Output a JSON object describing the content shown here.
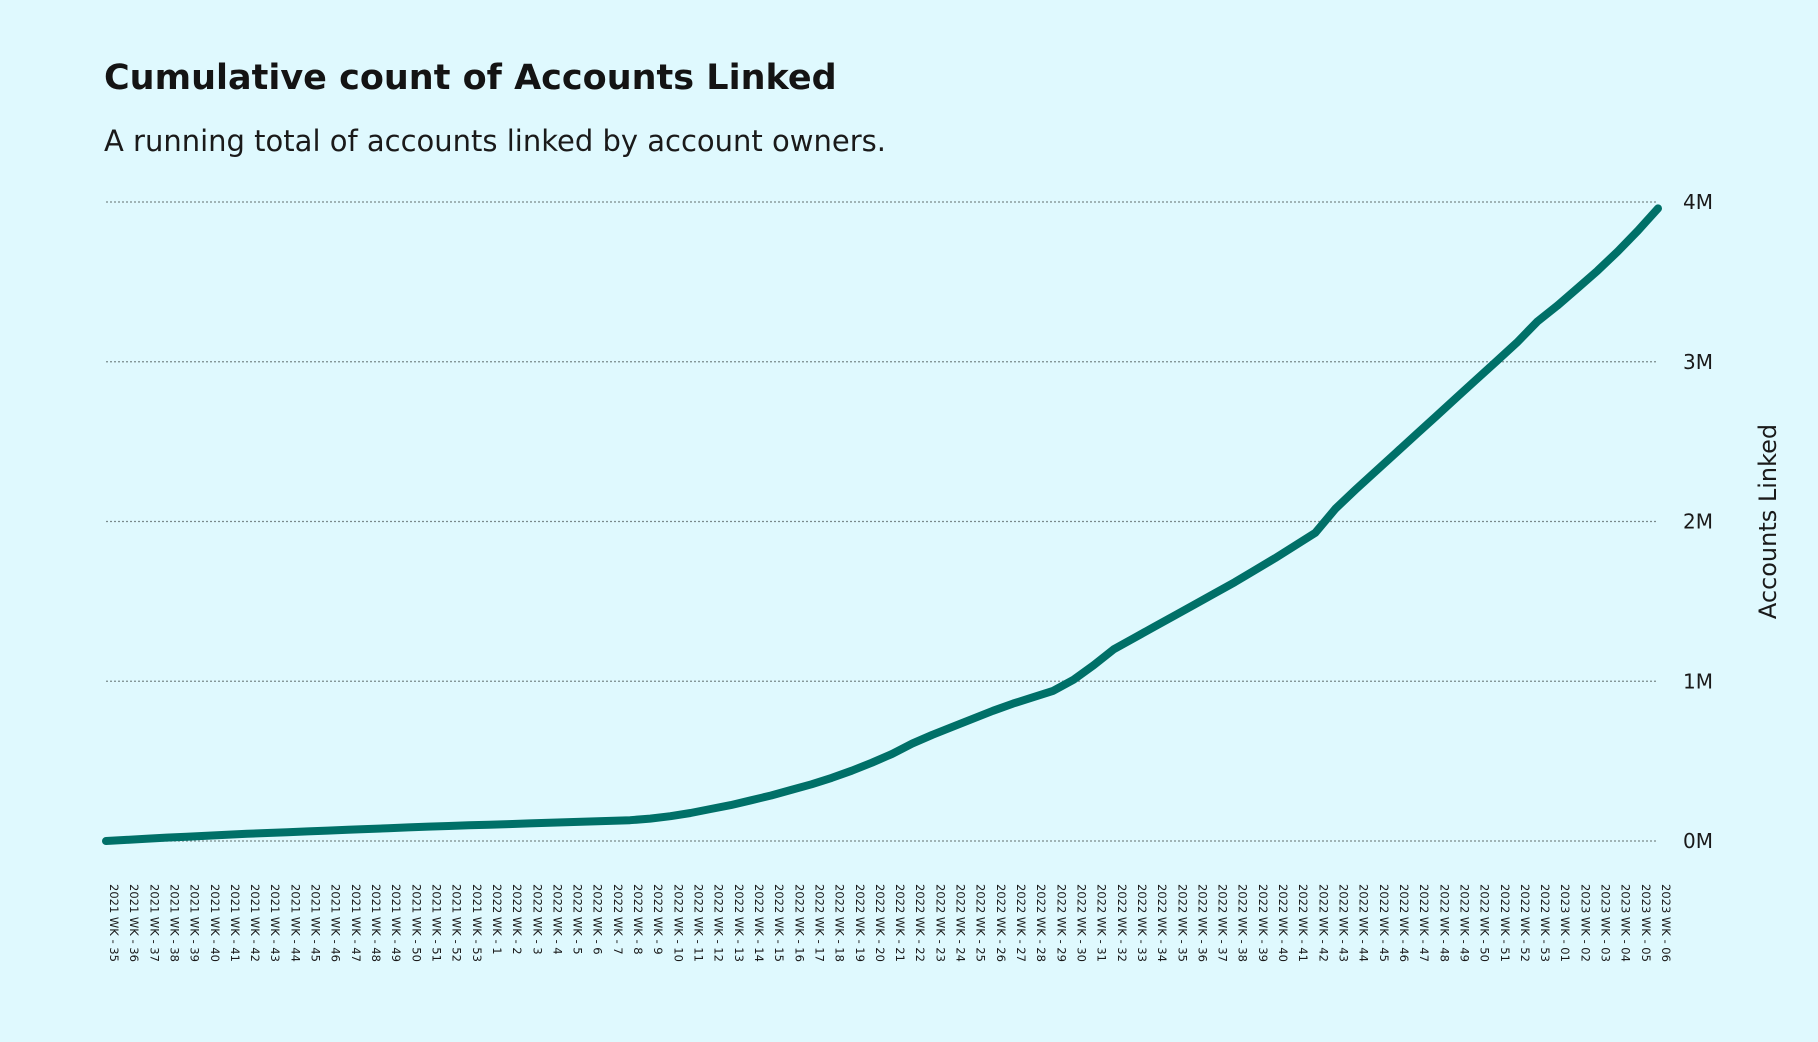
{
  "title": "Cumulative count of Accounts Linked",
  "subtitle": "A running total of accounts linked by account owners.",
  "colors": {
    "background": "#dff9fe",
    "line": "#007068",
    "grid": "#7a8a8c",
    "text": "#1a1a1a"
  },
  "chart_data": {
    "type": "line",
    "title": "Cumulative count of Accounts Linked",
    "subtitle": "A running total of accounts linked by account owners.",
    "xlabel": "",
    "ylabel": "Accounts Linked",
    "y_axis_position": "right",
    "ylim": [
      0,
      4000000
    ],
    "y_ticks": [
      0,
      1000000,
      2000000,
      3000000,
      4000000
    ],
    "y_tick_labels": [
      "0M",
      "1M",
      "2M",
      "3M",
      "4M"
    ],
    "grid": "horizontal-dotted",
    "legend": "none",
    "categories": [
      "2021 WK - 35",
      "2021 WK - 36",
      "2021 WK - 37",
      "2021 WK - 38",
      "2021 WK - 39",
      "2021 WK - 40",
      "2021 WK - 41",
      "2021 WK - 42",
      "2021 WK - 43",
      "2021 WK - 44",
      "2021 WK - 45",
      "2021 WK - 46",
      "2021 WK - 47",
      "2021 WK - 48",
      "2021 WK - 49",
      "2021 WK - 50",
      "2021 WK - 51",
      "2021 WK - 52",
      "2021 WK - 53",
      "2022 WK - 1",
      "2022 WK - 2",
      "2022 WK - 3",
      "2022 WK - 4",
      "2022 WK - 5",
      "2022 WK - 6",
      "2022 WK - 7",
      "2022 WK - 8",
      "2022 WK - 9",
      "2022 WK - 10",
      "2022 WK - 11",
      "2022 WK - 12",
      "2022 WK - 13",
      "2022 WK - 14",
      "2022 WK - 15",
      "2022 WK - 16",
      "2022 WK - 17",
      "2022 WK - 18",
      "2022 WK - 19",
      "2022 WK - 20",
      "2022 WK - 21",
      "2022 WK - 22",
      "2022 WK - 23",
      "2022 WK - 24",
      "2022 WK - 25",
      "2022 WK - 26",
      "2022 WK - 27",
      "2022 WK - 28",
      "2022 WK - 29",
      "2022 WK - 30",
      "2022 WK - 31",
      "2022 WK - 32",
      "2022 WK - 33",
      "2022 WK - 34",
      "2022 WK - 35",
      "2022 WK - 36",
      "2022 WK - 37",
      "2022 WK - 38",
      "2022 WK - 39",
      "2022 WK - 40",
      "2022 WK - 41",
      "2022 WK - 42",
      "2022 WK - 43",
      "2022 WK - 44",
      "2022 WK - 45",
      "2022 WK - 46",
      "2022 WK - 47",
      "2022 WK - 48",
      "2022 WK - 49",
      "2022 WK - 50",
      "2022 WK - 51",
      "2022 WK - 52",
      "2022 WK - 53",
      "2023 WK - 01",
      "2023 WK - 02",
      "2023 WK - 03",
      "2023 WK - 04",
      "2023 WK - 05",
      "2023 WK - 06"
    ],
    "series": [
      {
        "values": [
          0,
          7000,
          14000,
          21000,
          27000,
          33000,
          39000,
          45000,
          50000,
          55000,
          60000,
          65000,
          70000,
          75000,
          80000,
          85000,
          90000,
          94000,
          98000,
          102000,
          106000,
          110000,
          114000,
          118000,
          122000,
          126000,
          130000,
          140000,
          155000,
          175000,
          200000,
          225000,
          255000,
          285000,
          320000,
          355000,
          395000,
          440000,
          490000,
          545000,
          610000,
          665000,
          715000,
          765000,
          815000,
          860000,
          900000,
          940000,
          1010000,
          1100000,
          1200000,
          1270000,
          1340000,
          1410000,
          1480000,
          1550000,
          1620000,
          1695000,
          1770000,
          1850000,
          1930000,
          2080000,
          2200000,
          2315000,
          2430000,
          2545000,
          2660000,
          2775000,
          2890000,
          3005000,
          3120000,
          3250000,
          3350000,
          3460000,
          3570000,
          3690000,
          3820000,
          3960000
        ]
      }
    ]
  }
}
